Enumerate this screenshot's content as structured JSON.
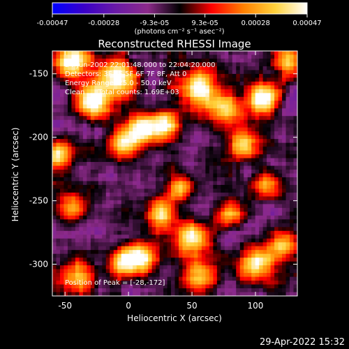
{
  "chart_data": {
    "type": "heatmap",
    "title": "Reconstructed RHESSI Image",
    "xlabel": "Heliocentric X (arcsec)",
    "ylabel": "Heliocentric Y (arcsec)",
    "xlim": [
      -60,
      133
    ],
    "ylim": [
      -325,
      -132
    ],
    "xticks": [
      -50,
      0,
      50,
      100
    ],
    "yticks": [
      -150,
      -200,
      -250,
      -300
    ],
    "colorbar": {
      "min": -0.00047,
      "max": 0.00047,
      "tick_values": [
        -0.00047,
        -0.00028,
        -9.3e-05,
        9.3e-05,
        0.00028,
        0.00047
      ],
      "tick_labels": [
        "-0.00047",
        "-0.00028",
        "-9.3e-05",
        "9.3e-05",
        "0.00028",
        "0.00047"
      ],
      "unit_label": "(photons cm⁻² s⁻¹ asec⁻²)",
      "colormap": [
        "#0000ff",
        "#3a00c8",
        "#6a1aa6",
        "#8c2a8a",
        "#000000",
        "#ff0000",
        "#ff8000",
        "#ffd23c",
        "#ffffff"
      ]
    },
    "annotations": [
      "24-Jun-2002 22:01:48.000 to 22:04:20.000",
      "Detectors: 3F 4F 5F 6F 7F 8F, Att 0",
      "Energy Range: 25.0 - 50.0 keV",
      "Clean      Total counts: 1.69E+03",
      "Position of Peak = [-28,-172]"
    ],
    "peak": {
      "x": -28,
      "y": -172
    },
    "hotspots": [
      {
        "x": -28,
        "y": -172,
        "v": 1.0,
        "s": 9
      },
      {
        "x": -45,
        "y": -140,
        "v": 0.85,
        "s": 10
      },
      {
        "x": -10,
        "y": -155,
        "v": 0.8,
        "s": 10
      },
      {
        "x": 10,
        "y": -195,
        "v": 0.75,
        "s": 9
      },
      {
        "x": -5,
        "y": -205,
        "v": 0.7,
        "s": 8
      },
      {
        "x": 28,
        "y": -190,
        "v": 0.65,
        "s": 8
      },
      {
        "x": 55,
        "y": -160,
        "v": 0.75,
        "s": 10
      },
      {
        "x": 75,
        "y": -175,
        "v": 0.7,
        "s": 9
      },
      {
        "x": 105,
        "y": -170,
        "v": 0.8,
        "s": 9
      },
      {
        "x": 125,
        "y": -140,
        "v": 0.7,
        "s": 8
      },
      {
        "x": 90,
        "y": -205,
        "v": 0.6,
        "s": 8
      },
      {
        "x": 110,
        "y": -235,
        "v": 0.55,
        "s": 8
      },
      {
        "x": 40,
        "y": -240,
        "v": 0.5,
        "s": 7
      },
      {
        "x": 25,
        "y": -260,
        "v": 0.55,
        "s": 8
      },
      {
        "x": -45,
        "y": -255,
        "v": 0.45,
        "s": 8
      },
      {
        "x": -40,
        "y": -310,
        "v": 0.6,
        "s": 9
      },
      {
        "x": -5,
        "y": -300,
        "v": 0.55,
        "s": 9
      },
      {
        "x": 10,
        "y": -295,
        "v": 0.75,
        "s": 8
      },
      {
        "x": 50,
        "y": -280,
        "v": 0.7,
        "s": 10
      },
      {
        "x": 55,
        "y": -310,
        "v": 0.6,
        "s": 9
      },
      {
        "x": 100,
        "y": -300,
        "v": 0.7,
        "s": 9
      },
      {
        "x": 120,
        "y": -285,
        "v": 0.55,
        "s": 8
      },
      {
        "x": -55,
        "y": -215,
        "v": 0.5,
        "s": 7
      },
      {
        "x": 80,
        "y": -260,
        "v": 0.5,
        "s": 7
      }
    ]
  },
  "footer": {
    "timestamp": "29-Apr-2022 15:32"
  }
}
